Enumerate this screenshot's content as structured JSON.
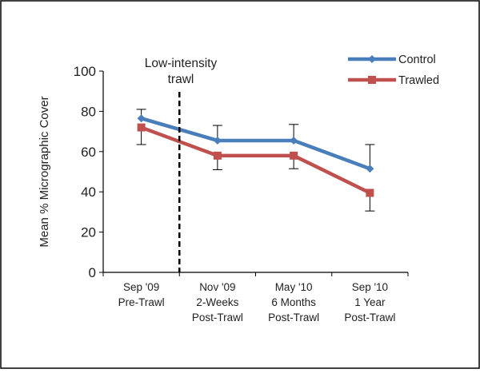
{
  "chart_data": {
    "type": "line",
    "ylabel": "Mean % Micrographic Cover",
    "ylim": [
      0,
      100
    ],
    "yticks": [
      0,
      20,
      40,
      60,
      80,
      100
    ],
    "categories": [
      [
        "Sep '09",
        "Pre-Trawl"
      ],
      [
        "Nov '09",
        "2-Weeks",
        "Post-Trawl"
      ],
      [
        "May '10",
        "6 Months",
        "Post-Trawl"
      ],
      [
        "Sep '10",
        "1 Year",
        "Post-Trawl"
      ]
    ],
    "series": [
      {
        "name": "Control",
        "color": "#4A7EBB",
        "marker": "diamond",
        "values": [
          76.5,
          65.5,
          65.5,
          51.5
        ],
        "error_upper": [
          81,
          73,
          73.5,
          63.5
        ]
      },
      {
        "name": "Trawled",
        "color": "#C0504D",
        "marker": "square",
        "values": [
          72,
          58,
          58,
          39.5
        ],
        "error_lower": [
          63.5,
          51,
          51.5,
          30.5
        ]
      }
    ],
    "annotation": {
      "lines": [
        "Low-intensity",
        "trawl"
      ],
      "between_categories": [
        0,
        1
      ],
      "style": "dashed"
    },
    "legend_position": "top-right"
  }
}
